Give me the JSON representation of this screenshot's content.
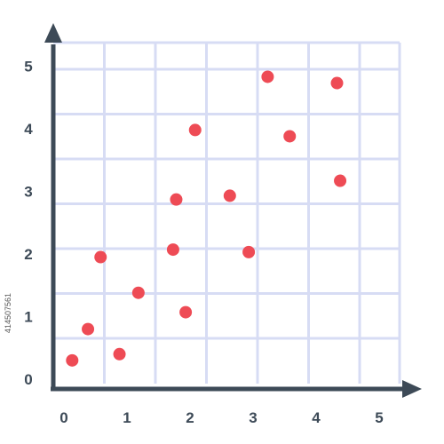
{
  "colors": {
    "grid": "#d7dcf4",
    "axis": "#3d4a57",
    "point": "#ee4b55",
    "background": "#ffffff"
  },
  "stock_id": "414507561",
  "chart_data": {
    "type": "scatter",
    "title": "",
    "xlabel": "",
    "ylabel": "",
    "xlim": [
      0,
      5.4
    ],
    "ylim": [
      0,
      5.5
    ],
    "grid": true,
    "x_ticks": [
      "0",
      "1",
      "2",
      "3",
      "4",
      "5"
    ],
    "y_ticks": [
      "0",
      "1",
      "2",
      "3",
      "4",
      "5"
    ],
    "series": [
      {
        "points": [
          {
            "x": 0.3,
            "y": 0.3
          },
          {
            "x": 0.55,
            "y": 0.8
          },
          {
            "x": 1.05,
            "y": 0.4
          },
          {
            "x": 0.75,
            "y": 1.95
          },
          {
            "x": 1.35,
            "y": 1.38
          },
          {
            "x": 2.1,
            "y": 1.07
          },
          {
            "x": 1.9,
            "y": 2.07
          },
          {
            "x": 1.95,
            "y": 2.87
          },
          {
            "x": 2.25,
            "y": 3.98
          },
          {
            "x": 2.8,
            "y": 2.93
          },
          {
            "x": 3.1,
            "y": 2.03
          },
          {
            "x": 3.4,
            "y": 4.83
          },
          {
            "x": 3.75,
            "y": 3.88
          },
          {
            "x": 4.5,
            "y": 4.73
          },
          {
            "x": 4.55,
            "y": 3.17
          }
        ]
      }
    ]
  }
}
